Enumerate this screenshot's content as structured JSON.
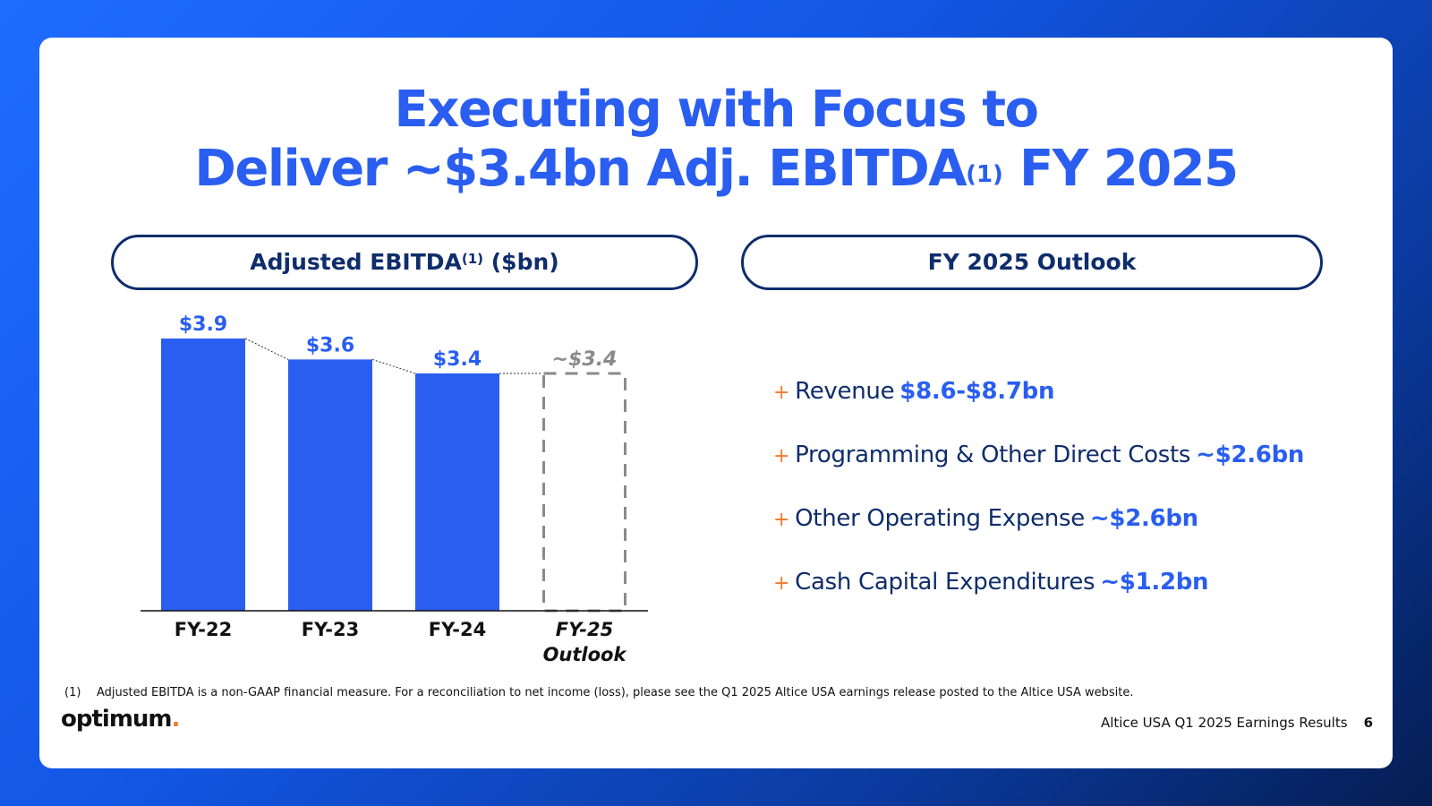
{
  "title": {
    "line1": "Executing with Focus to",
    "line2_main": "Deliver ~$3.4bn Adj. EBITDA",
    "line2_sup": "(1)",
    "line2_end": "FY 2025"
  },
  "pills": {
    "left_main": "Adjusted EBITDA",
    "left_sup": "(1)",
    "left_end": "($bn)",
    "right": "FY 2025 Outlook"
  },
  "chart_data": {
    "type": "bar",
    "categories": [
      "FY-22",
      "FY-23",
      "FY-24",
      "FY-25 Outlook"
    ],
    "category_lines": [
      [
        "FY-22"
      ],
      [
        "FY-23"
      ],
      [
        "FY-24"
      ],
      [
        "FY-25",
        "Outlook"
      ]
    ],
    "values": [
      3.9,
      3.6,
      3.4,
      3.4
    ],
    "value_labels": [
      "$3.9",
      "$3.6",
      "$3.4",
      "~$3.4"
    ],
    "projected": [
      false,
      false,
      false,
      true
    ],
    "ylim": [
      0,
      3.9
    ],
    "colors": {
      "bar": "#2a5ef0",
      "projected": "#8a8a8a",
      "label": "#2a5ef0"
    }
  },
  "outlook": {
    "items": [
      {
        "label": "Revenue",
        "value": "$8.6-$8.7bn"
      },
      {
        "label": "Programming & Other Direct Costs",
        "value": "~$2.6bn"
      },
      {
        "label": "Other Operating Expense",
        "value": "~$2.6bn"
      },
      {
        "label": "Cash Capital Expenditures",
        "value": "~$1.2bn"
      }
    ],
    "bullet": "+"
  },
  "footnote": {
    "number": "(1)",
    "text": "Adjusted EBITDA is a non-GAAP financial measure. For a reconciliation to net income (loss), please see the Q1 2025 Altice USA earnings release posted to the Altice USA website."
  },
  "footer": {
    "logo": "optimum",
    "logo_dot": ".",
    "source": "Altice USA Q1 2025 Earnings Results",
    "page": "6"
  }
}
